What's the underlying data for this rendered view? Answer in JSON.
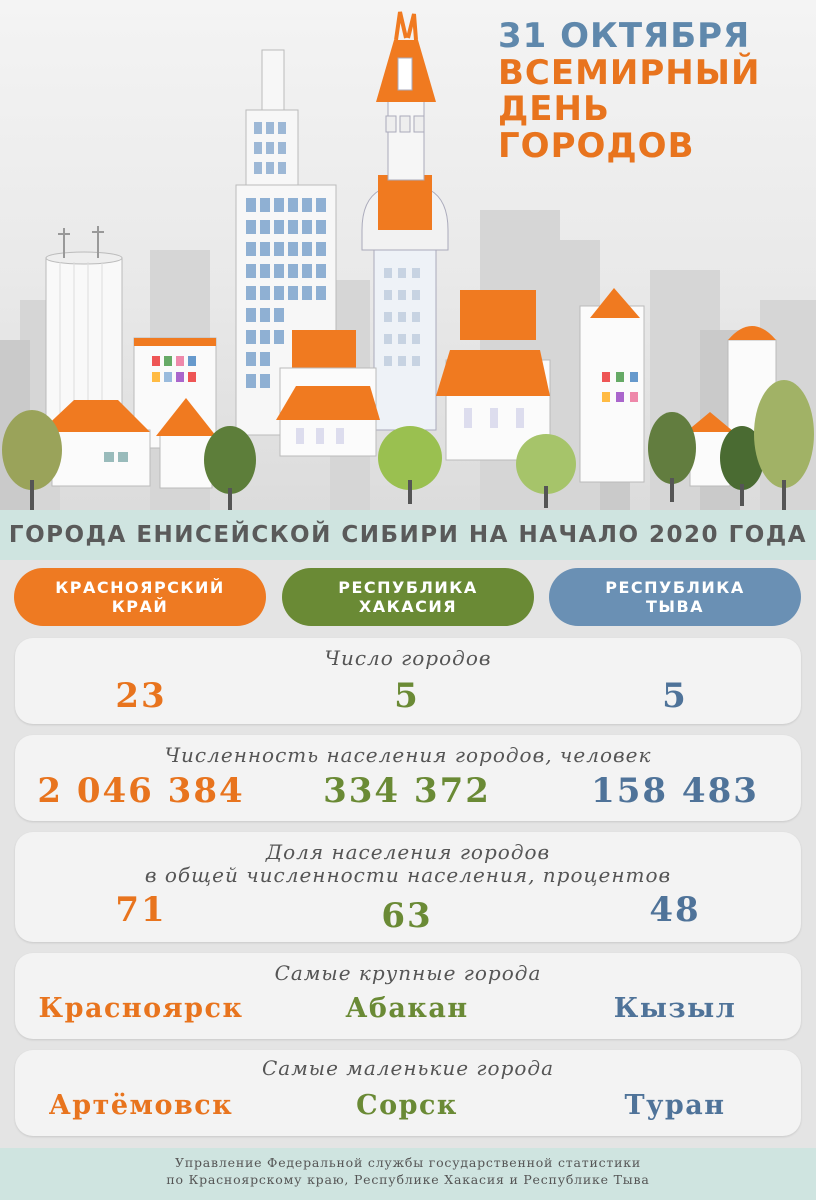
{
  "header": {
    "date": "31 ОКТЯБРЯ",
    "title_line1": "ВСЕМИРНЫЙ",
    "title_line2": "ДЕНЬ",
    "title_line3": "ГОРОДОВ"
  },
  "banner": {
    "text": "ГОРОДА ЕНИСЕЙСКОЙ СИБИРИ НА НАЧАЛО 2020 ГОДА"
  },
  "regions": [
    {
      "line1": "КРАСНОЯРСКИЙ",
      "line2": "КРАЙ",
      "color": "#ee7a22"
    },
    {
      "line1": "РЕСПУБЛИКА",
      "line2": "ХАКАСИЯ",
      "color": "#6a8a35"
    },
    {
      "line1": "РЕСПУБЛИКА",
      "line2": "ТЫВА",
      "color": "#6a90b4"
    }
  ],
  "stats": {
    "city_count": {
      "label": "Число городов",
      "values": [
        "23",
        "5",
        "5"
      ]
    },
    "population": {
      "label": "Численность населения городов, человек",
      "values": [
        "2 046 384",
        "334 372",
        "158 483"
      ]
    },
    "share": {
      "label_line1": "Доля населения городов",
      "label_line2": "в общей численности населения, процентов",
      "values": [
        "71",
        "63",
        "48"
      ]
    },
    "largest": {
      "label": "Самые крупные города",
      "values": [
        "Красноярск",
        "Абакан",
        "Кызыл"
      ]
    },
    "smallest": {
      "label": "Самые маленькие города",
      "values": [
        "Артёмовск",
        "Сорск",
        "Туран"
      ]
    }
  },
  "footer": {
    "line1": "Управление Федеральной службы государственной статистики",
    "line2": "по Красноярскому краю, Республике Хакасия и Республике Тыва"
  }
}
